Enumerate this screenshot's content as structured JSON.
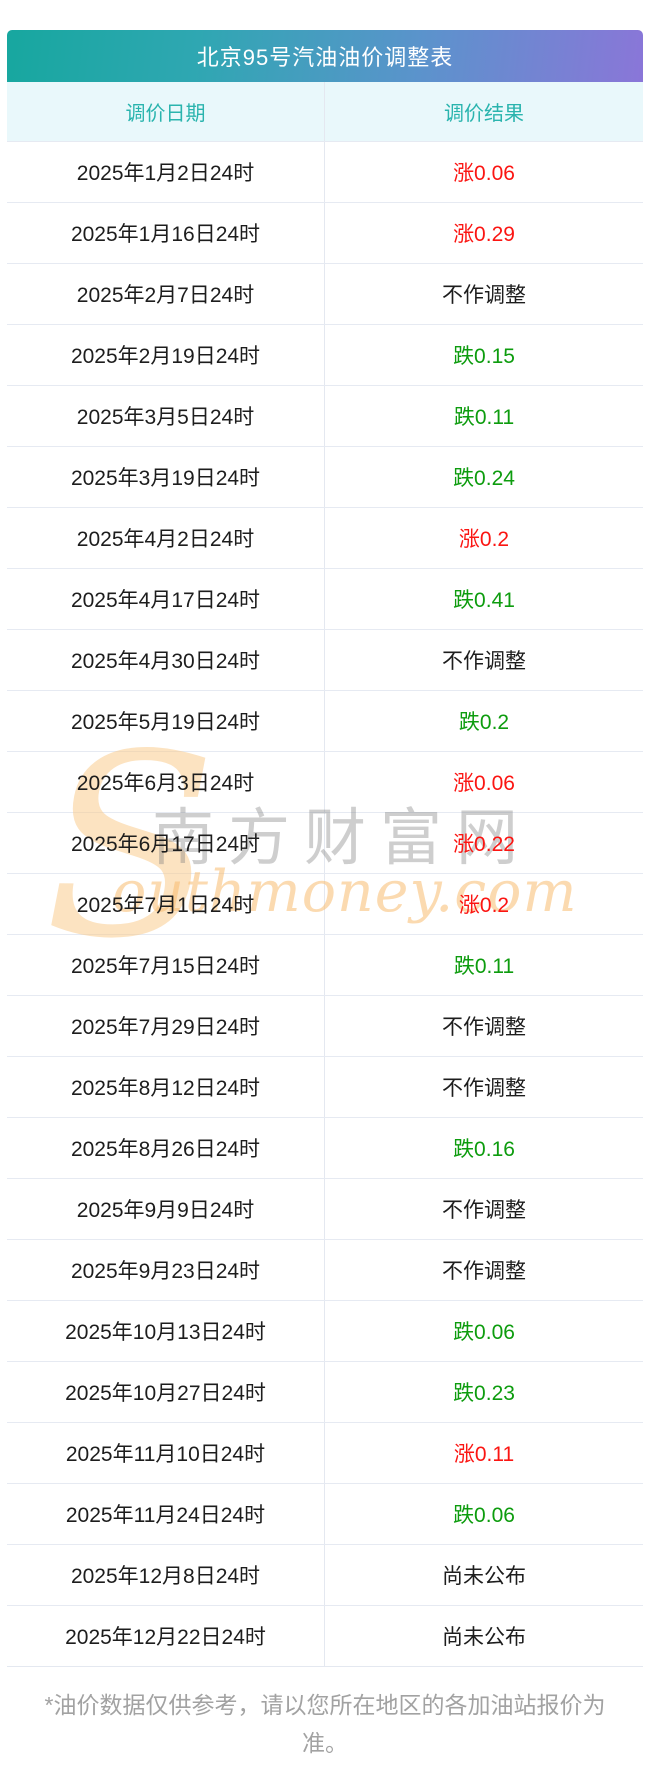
{
  "chart_data": {
    "type": "table",
    "title": "北京95号汽油油价调整表",
    "columns": [
      "调价日期",
      "调价结果"
    ],
    "rows": [
      {
        "date": "2025年1月2日24时",
        "result": "涨0.06",
        "change": "up"
      },
      {
        "date": "2025年1月16日24时",
        "result": "涨0.29",
        "change": "up"
      },
      {
        "date": "2025年2月7日24时",
        "result": "不作调整",
        "change": "none"
      },
      {
        "date": "2025年2月19日24时",
        "result": "跌0.15",
        "change": "down"
      },
      {
        "date": "2025年3月5日24时",
        "result": "跌0.11",
        "change": "down"
      },
      {
        "date": "2025年3月19日24时",
        "result": "跌0.24",
        "change": "down"
      },
      {
        "date": "2025年4月2日24时",
        "result": "涨0.2",
        "change": "up"
      },
      {
        "date": "2025年4月17日24时",
        "result": "跌0.41",
        "change": "down"
      },
      {
        "date": "2025年4月30日24时",
        "result": "不作调整",
        "change": "none"
      },
      {
        "date": "2025年5月19日24时",
        "result": "跌0.2",
        "change": "down"
      },
      {
        "date": "2025年6月3日24时",
        "result": "涨0.06",
        "change": "up"
      },
      {
        "date": "2025年6月17日24时",
        "result": "涨0.22",
        "change": "up"
      },
      {
        "date": "2025年7月1日24时",
        "result": "涨0.2",
        "change": "up"
      },
      {
        "date": "2025年7月15日24时",
        "result": "跌0.11",
        "change": "down"
      },
      {
        "date": "2025年7月29日24时",
        "result": "不作调整",
        "change": "none"
      },
      {
        "date": "2025年8月12日24时",
        "result": "不作调整",
        "change": "none"
      },
      {
        "date": "2025年8月26日24时",
        "result": "跌0.16",
        "change": "down"
      },
      {
        "date": "2025年9月9日24时",
        "result": "不作调整",
        "change": "none"
      },
      {
        "date": "2025年9月23日24时",
        "result": "不作调整",
        "change": "none"
      },
      {
        "date": "2025年10月13日24时",
        "result": "跌0.06",
        "change": "down"
      },
      {
        "date": "2025年10月27日24时",
        "result": "跌0.23",
        "change": "down"
      },
      {
        "date": "2025年11月10日24时",
        "result": "涨0.11",
        "change": "up"
      },
      {
        "date": "2025年11月24日24时",
        "result": "跌0.06",
        "change": "down"
      },
      {
        "date": "2025年12月8日24时",
        "result": "尚未公布",
        "change": "pending"
      },
      {
        "date": "2025年12月22日24时",
        "result": "尚未公布",
        "change": "pending"
      }
    ]
  },
  "watermark": {
    "initial": "S",
    "cn": "南方财富网",
    "en": "outhmoney.com"
  },
  "footnote": "*油价数据仅供参考，请以您所在地区的各加油站报价为准。",
  "colors": {
    "title_gradient_start": "#17a79f",
    "title_gradient_end": "#8a76d8",
    "header_bg": "#e9f8fb",
    "header_text": "#2ab4ae",
    "rise_red": "#fb1512",
    "fall_green": "#0d9c0e",
    "neutral_text": "#1d1d1d",
    "footnote_text": "#a2a2a2"
  }
}
